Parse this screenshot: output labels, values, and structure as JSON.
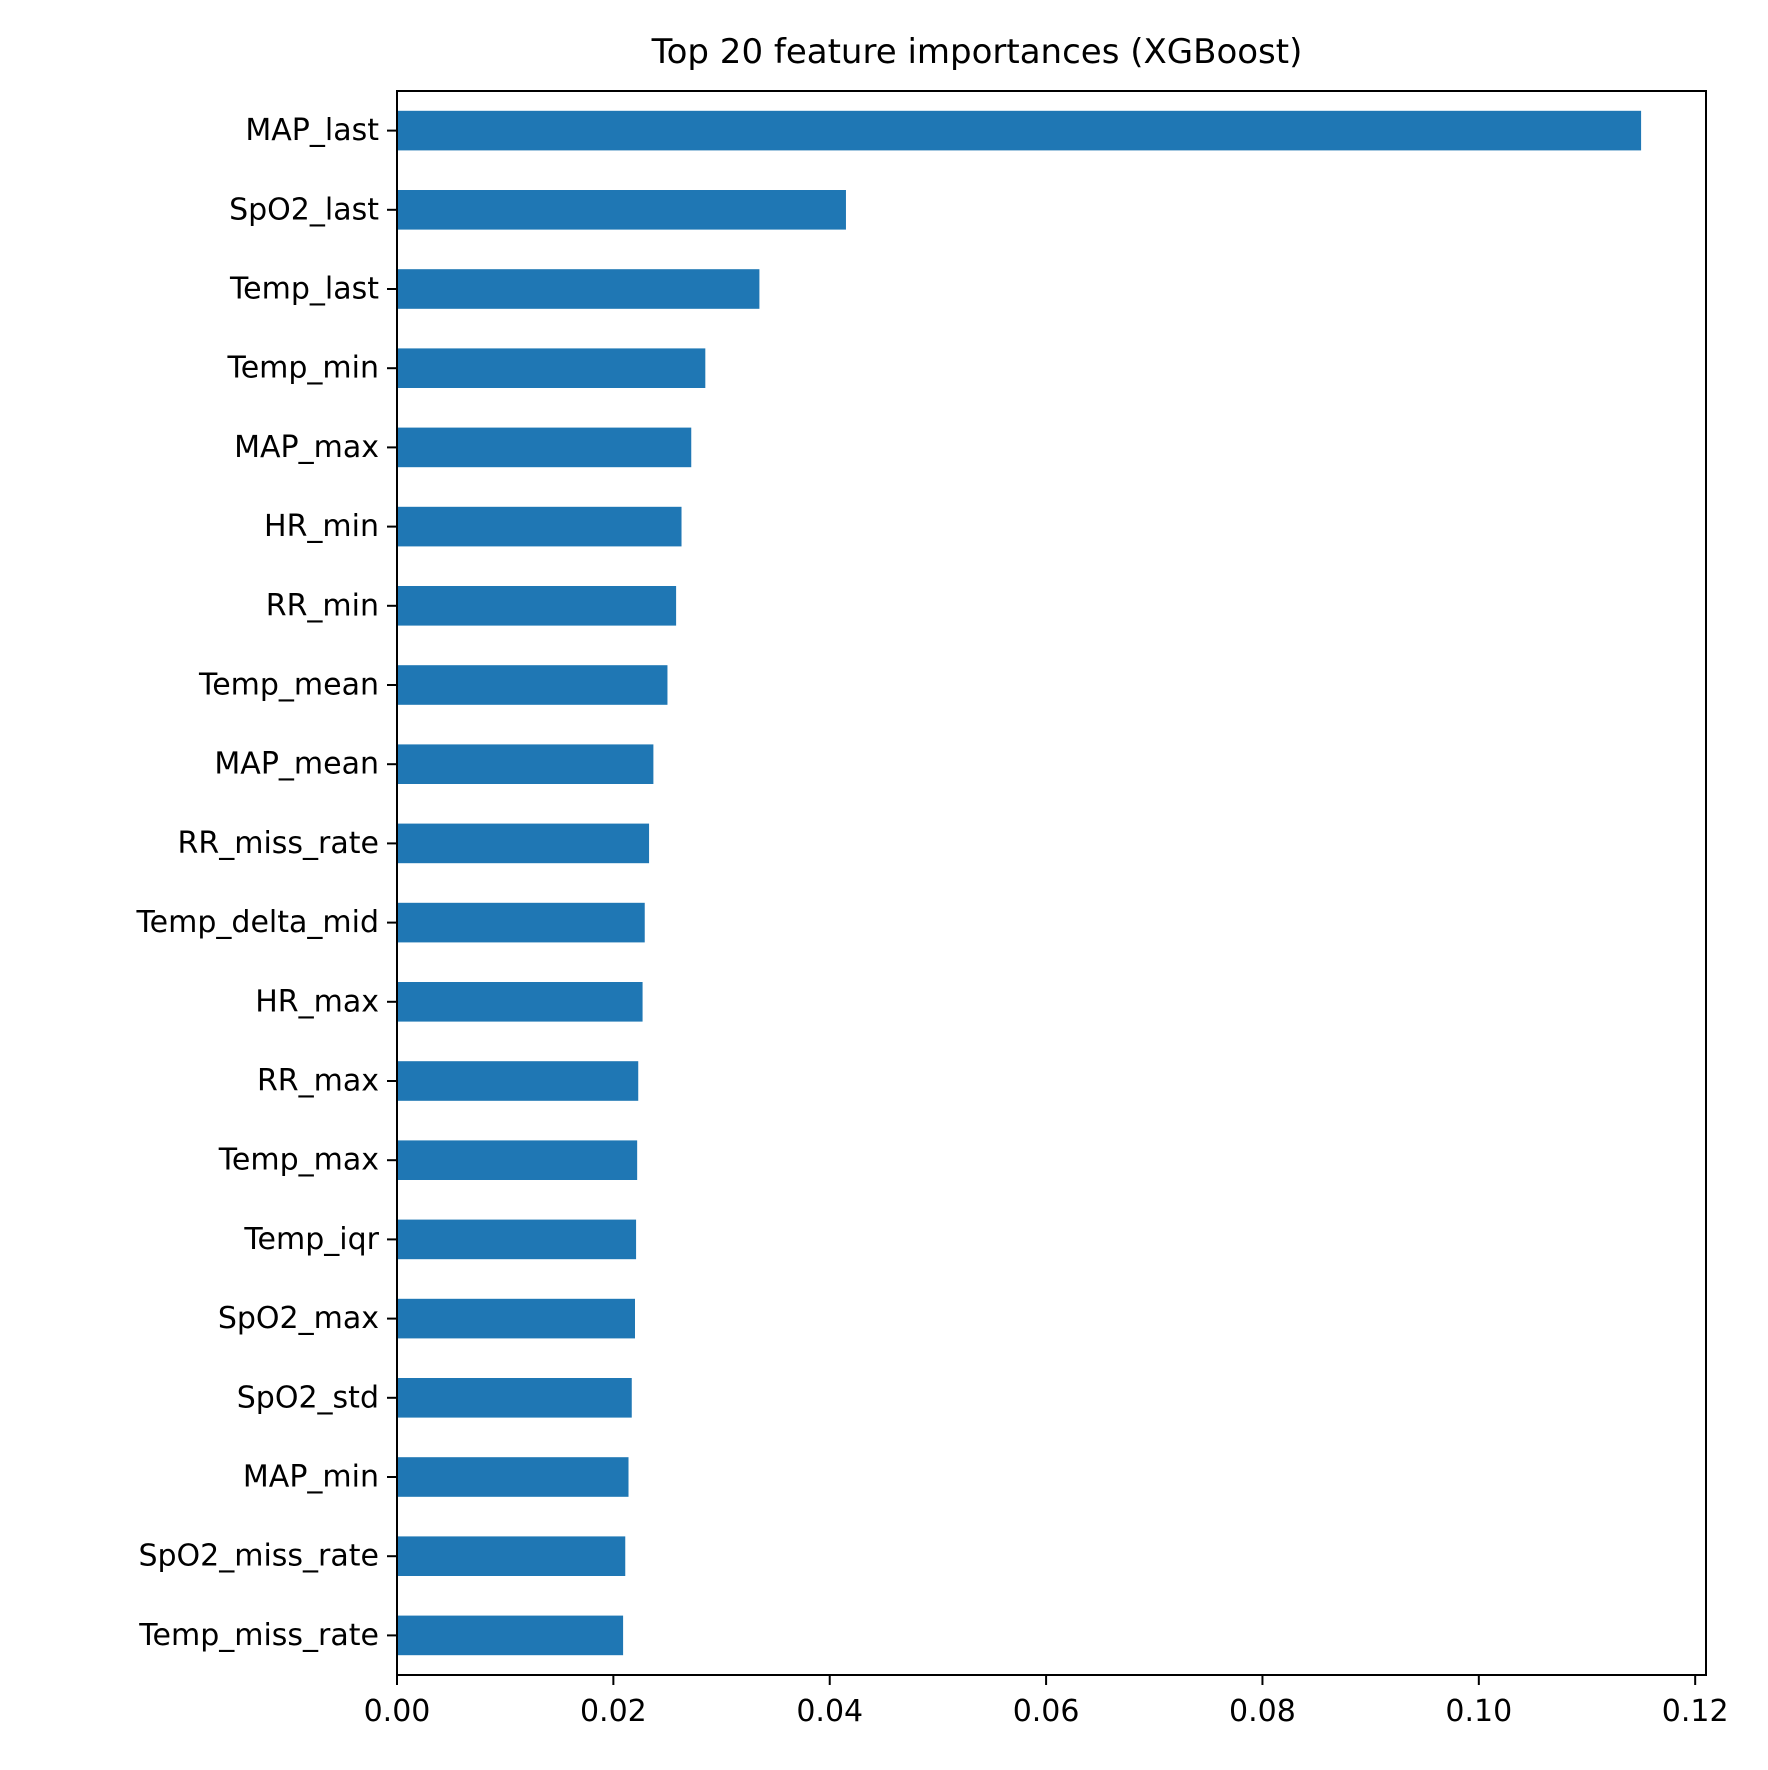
{
  "chart_data": {
    "type": "bar",
    "orientation": "horizontal",
    "title": "Top 20 feature importances (XGBoost)",
    "xlabel": "",
    "ylabel": "",
    "categories": [
      "MAP_last",
      "SpO2_last",
      "Temp_last",
      "Temp_min",
      "MAP_max",
      "HR_min",
      "RR_min",
      "Temp_mean",
      "MAP_mean",
      "RR_miss_rate",
      "Temp_delta_mid",
      "HR_max",
      "RR_max",
      "Temp_max",
      "Temp_iqr",
      "SpO2_max",
      "SpO2_std",
      "MAP_min",
      "SpO2_miss_rate",
      "Temp_miss_rate"
    ],
    "values": [
      0.115,
      0.0415,
      0.0335,
      0.0285,
      0.0272,
      0.0263,
      0.0258,
      0.025,
      0.0237,
      0.0233,
      0.0229,
      0.0227,
      0.0223,
      0.0222,
      0.0221,
      0.022,
      0.0217,
      0.0214,
      0.0211,
      0.0209
    ],
    "xlim": [
      0,
      0.121
    ],
    "xticks": [
      0.0,
      0.02,
      0.04,
      0.06,
      0.08,
      0.1,
      0.12
    ],
    "xtick_labels": [
      "0.00",
      "0.02",
      "0.04",
      "0.06",
      "0.08",
      "0.10",
      "0.12"
    ],
    "grid": false,
    "legend": "none",
    "bar_color": "#1f77b4"
  }
}
